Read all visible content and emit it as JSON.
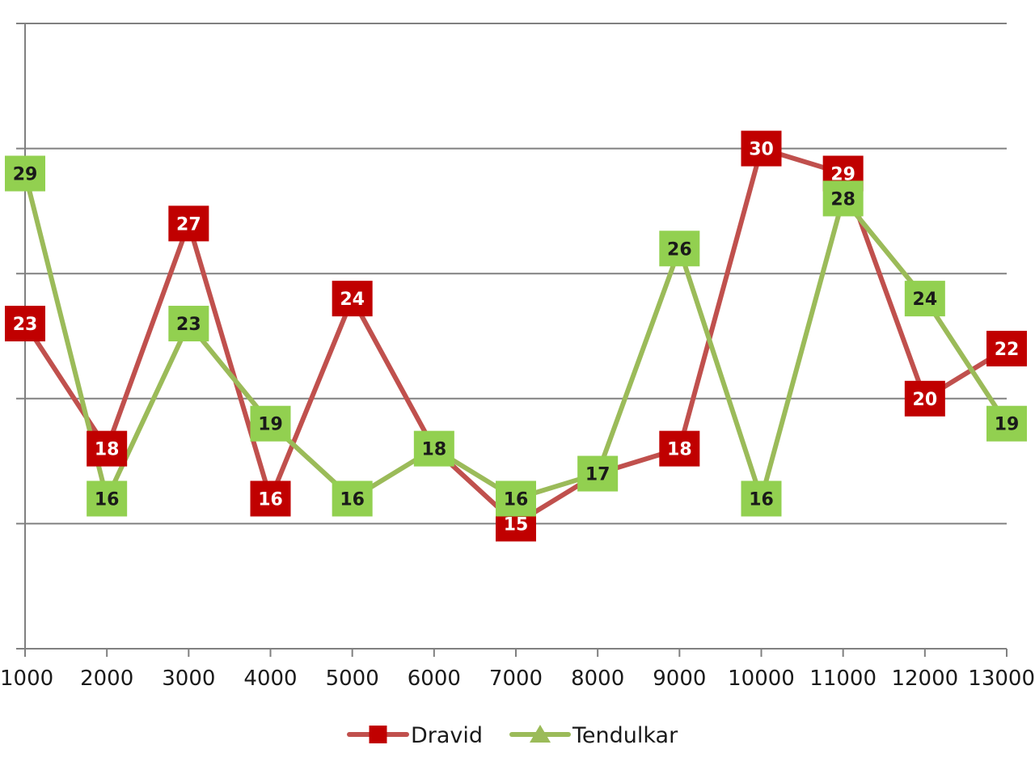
{
  "chart_data": {
    "type": "line",
    "x": [
      1000,
      2000,
      3000,
      4000,
      5000,
      6000,
      7000,
      8000,
      9000,
      10000,
      11000,
      12000,
      13000
    ],
    "x_tick_labels": [
      "1000",
      "2000",
      "3000",
      "4000",
      "5000",
      "6000",
      "7000",
      "8000",
      "9000",
      "10000",
      "11000",
      "12000",
      "13000"
    ],
    "ylim": [
      10,
      35
    ],
    "y_gridlines": [
      15,
      20,
      25,
      30,
      35
    ],
    "y_tick_labels_shown": false,
    "grid": true,
    "legend_position": "bottom",
    "title": "",
    "xlabel": "",
    "ylabel": "",
    "series": [
      {
        "name": "Dravid",
        "color": "#c0504d",
        "label_bg": "#c00000",
        "label_text_color": "#ffffff",
        "marker": "square",
        "values": [
          23,
          18,
          27,
          16,
          24,
          18,
          15,
          17,
          18,
          30,
          29,
          20,
          22
        ],
        "data_labels": [
          "23",
          "18",
          "27",
          "16",
          "24",
          "",
          "15",
          "",
          "18",
          "30",
          "29",
          "20",
          "22"
        ]
      },
      {
        "name": "Tendulkar",
        "color": "#9bbb59",
        "label_bg": "#92d050",
        "label_text_color": "#1a1a1a",
        "marker": "triangle",
        "values": [
          29,
          16,
          23,
          19,
          16,
          18,
          16,
          17,
          26,
          16,
          28,
          24,
          19
        ],
        "data_labels": [
          "29",
          "16",
          "23",
          "19",
          "16",
          "18",
          "16",
          "17",
          "26",
          "16",
          "28",
          "24",
          "19"
        ]
      }
    ]
  },
  "colors": {
    "gridline": "#808080",
    "axis": "#808080",
    "background": "#ffffff"
  }
}
